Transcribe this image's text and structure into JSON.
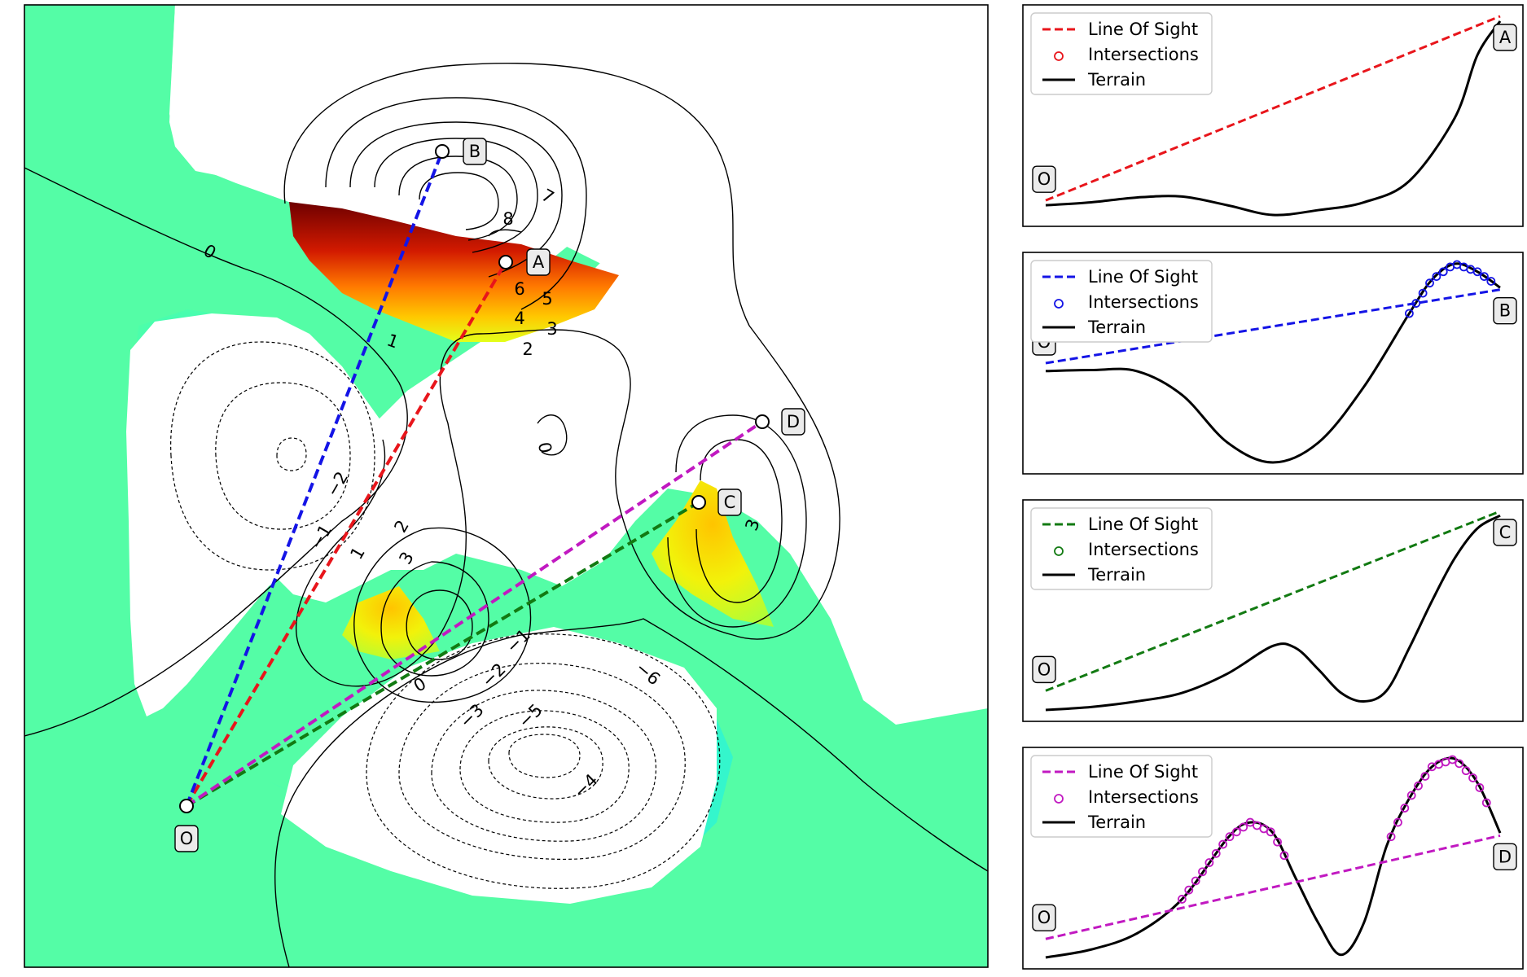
{
  "chart_data": [
    {
      "type": "contour",
      "title": "",
      "xlabel": "",
      "ylabel": "",
      "contour_levels": [
        -6,
        -5,
        -4,
        -3,
        -2,
        -1,
        0,
        1,
        2,
        3,
        4,
        5,
        6,
        7,
        8
      ],
      "contour_labels": [
        "8",
        "7",
        "6",
        "5",
        "4",
        "3",
        "2",
        "1",
        "0",
        "0",
        "−1",
        "−2",
        "1",
        "2",
        "3",
        "0",
        "−1",
        "−2",
        "−3",
        "−4",
        "−5",
        "−6",
        "3"
      ],
      "colormap": [
        "#51ffa4",
        "#2bfcd0",
        "#e4ff1a",
        "#ffc800",
        "#ff7800",
        "#d41a00",
        "#8c0000"
      ],
      "points": [
        {
          "label": "O",
          "role": "observer"
        },
        {
          "label": "A",
          "role": "target"
        },
        {
          "label": "B",
          "role": "target"
        },
        {
          "label": "C",
          "role": "target"
        },
        {
          "label": "D",
          "role": "target"
        }
      ],
      "lines_of_sight": [
        {
          "to": "A",
          "color": "#e8151b"
        },
        {
          "to": "B",
          "color": "#1414e6"
        },
        {
          "to": "C",
          "color": "#127a12"
        },
        {
          "to": "D",
          "color": "#c119c1"
        }
      ]
    },
    {
      "type": "line",
      "target": "A",
      "legend": [
        "Line Of Sight",
        "Intersections",
        "Terrain"
      ],
      "legend_location": "upper-left",
      "color": "#e8151b",
      "start_label": "O",
      "end_label": "A",
      "x": [
        0,
        0.1,
        0.2,
        0.3,
        0.4,
        0.5,
        0.6,
        0.7,
        0.8,
        0.9,
        0.95,
        1.0
      ],
      "terrain": [
        0.05,
        0.08,
        0.13,
        0.14,
        0.05,
        -0.05,
        0.0,
        0.08,
        0.3,
        0.95,
        1.6,
        1.95
      ],
      "line_of_sight": [
        0.1,
        2.0
      ],
      "intersections_x": []
    },
    {
      "type": "line",
      "target": "B",
      "legend": [
        "Line Of Sight",
        "Intersections",
        "Terrain"
      ],
      "legend_location": "upper-left",
      "color": "#1414e6",
      "start_label": "O",
      "end_label": "B",
      "x": [
        0,
        0.1,
        0.2,
        0.3,
        0.4,
        0.5,
        0.6,
        0.7,
        0.8,
        0.85,
        0.9,
        0.95,
        1.0
      ],
      "terrain": [
        -1.0,
        -0.95,
        -1.0,
        -2.2,
        -4.6,
        -5.6,
        -4.6,
        -1.8,
        1.9,
        3.6,
        4.4,
        4.0,
        3.2
      ],
      "line_of_sight": [
        -0.6,
        3.1
      ],
      "intersections_x": [
        0.8,
        0.815,
        0.83,
        0.845,
        0.86,
        0.875,
        0.89,
        0.905,
        0.92,
        0.935,
        0.95,
        0.965,
        0.98
      ]
    },
    {
      "type": "line",
      "target": "C",
      "legend": [
        "Line Of Sight",
        "Intersections",
        "Terrain"
      ],
      "legend_location": "upper-left",
      "color": "#127a12",
      "start_label": "O",
      "end_label": "C",
      "x": [
        0,
        0.1,
        0.2,
        0.3,
        0.4,
        0.5,
        0.55,
        0.6,
        0.65,
        0.7,
        0.75,
        0.8,
        0.85,
        0.9,
        0.95,
        1.0
      ],
      "terrain": [
        0.05,
        0.12,
        0.25,
        0.45,
        0.9,
        1.55,
        1.5,
        1.0,
        0.45,
        0.25,
        0.5,
        1.5,
        2.6,
        3.6,
        4.3,
        4.6
      ],
      "line_of_sight": [
        0.5,
        4.7
      ],
      "intersections_x": []
    },
    {
      "type": "line",
      "target": "D",
      "legend": [
        "Line Of Sight",
        "Intersections",
        "Terrain"
      ],
      "legend_location": "upper-left",
      "color": "#c119c1",
      "start_label": "O",
      "end_label": "D",
      "x": [
        0,
        0.1,
        0.2,
        0.3,
        0.4,
        0.45,
        0.5,
        0.55,
        0.6,
        0.65,
        0.7,
        0.75,
        0.8,
        0.85,
        0.9,
        0.95,
        1.0
      ],
      "terrain": [
        -3.6,
        -3.3,
        -2.7,
        -1.4,
        0.9,
        1.5,
        1.1,
        -0.6,
        -2.3,
        -3.5,
        -2.3,
        0.6,
        2.4,
        3.6,
        3.9,
        3.0,
        1.1
      ],
      "line_of_sight": [
        -2.9,
        1.0
      ],
      "intersections_x": [
        0.3,
        0.315,
        0.33,
        0.345,
        0.36,
        0.375,
        0.39,
        0.405,
        0.42,
        0.435,
        0.45,
        0.465,
        0.48,
        0.495,
        0.51,
        0.525,
        0.76,
        0.775,
        0.79,
        0.805,
        0.82,
        0.835,
        0.85,
        0.865,
        0.88,
        0.895,
        0.91,
        0.925,
        0.94,
        0.955,
        0.97
      ]
    }
  ]
}
